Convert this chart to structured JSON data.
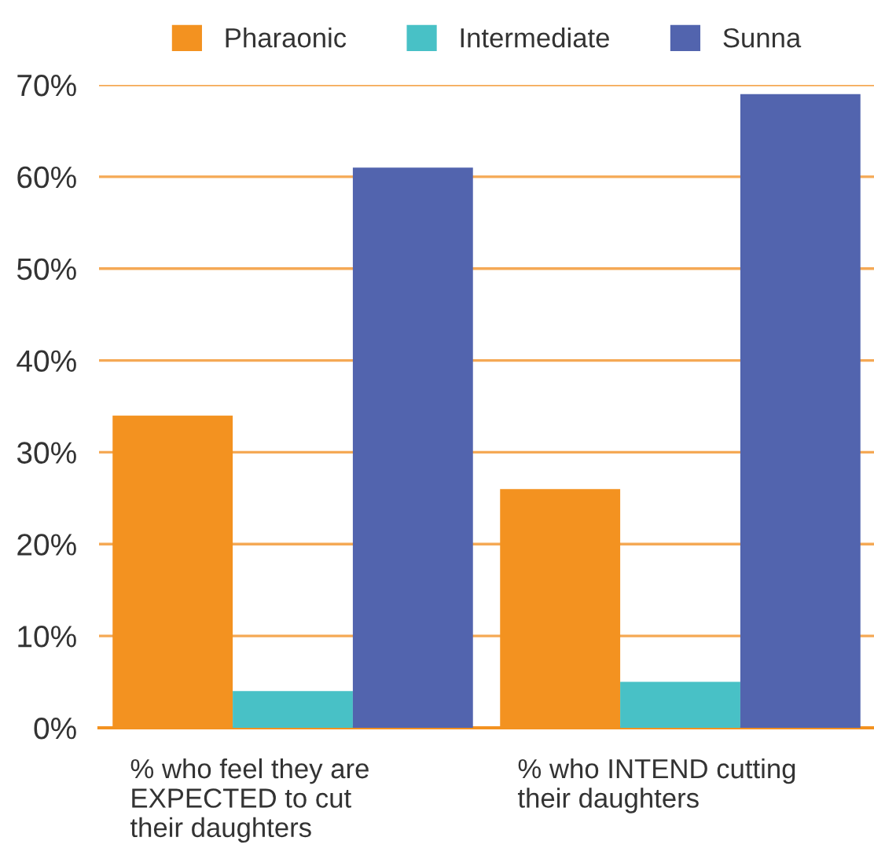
{
  "chart_data": {
    "type": "bar",
    "categories": [
      "% who feel they are\nEXPECTED to cut\ntheir daughters",
      "% who INTEND cutting\ntheir daughters"
    ],
    "series": [
      {
        "name": "Pharaonic",
        "color": "#f39220",
        "values": [
          34,
          26
        ]
      },
      {
        "name": "Intermediate",
        "color": "#48c1c6",
        "values": [
          4,
          5
        ]
      },
      {
        "name": "Sunna",
        "color": "#5264ae",
        "values": [
          61,
          69
        ]
      }
    ],
    "ylim": [
      0,
      70
    ],
    "yticks": [
      {
        "value": 0,
        "label": "0%"
      },
      {
        "value": 10,
        "label": "10%"
      },
      {
        "value": 20,
        "label": "20%"
      },
      {
        "value": 30,
        "label": "30%"
      },
      {
        "value": 40,
        "label": "40%"
      },
      {
        "value": 50,
        "label": "50%"
      },
      {
        "value": 60,
        "label": "60%"
      },
      {
        "value": 70,
        "label": "70%"
      }
    ],
    "grid": "y",
    "legend": "top"
  }
}
